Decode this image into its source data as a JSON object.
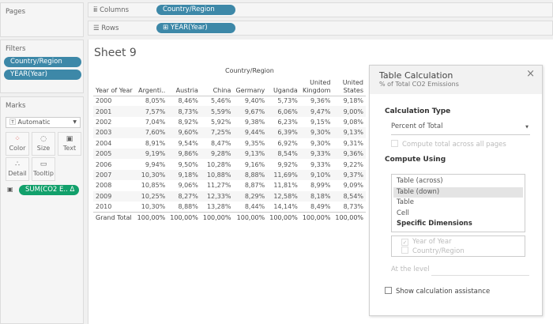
{
  "pages": {
    "title": "Pages"
  },
  "filters": {
    "title": "Filters",
    "items": [
      "Country/Region",
      "YEAR(Year)"
    ]
  },
  "marks": {
    "title": "Marks",
    "type": "Automatic",
    "cards": [
      "Color",
      "Size",
      "Text",
      "Detail",
      "Tooltip"
    ],
    "field": "SUM(CO2 E.. Δ"
  },
  "shelves": {
    "columns_label": "Columns",
    "columns_pill": "Country/Region",
    "rows_label": "Rows",
    "rows_pill": "⊞ YEAR(Year)"
  },
  "sheet": {
    "title": "Sheet 9",
    "column_group": "Country/Region",
    "headers": [
      "Year of Year",
      "Argenti..",
      "Austria",
      "China",
      "Germany",
      "Uganda",
      "United Kingdom",
      "United States"
    ],
    "rows": [
      [
        "2000",
        "8,05%",
        "8,46%",
        "5,46%",
        "9,40%",
        "5,73%",
        "9,36%",
        "9,18%"
      ],
      [
        "2001",
        "7,57%",
        "8,73%",
        "5,59%",
        "9,67%",
        "6,06%",
        "9,47%",
        "9,00%"
      ],
      [
        "2002",
        "7,04%",
        "8,92%",
        "5,92%",
        "9,38%",
        "6,23%",
        "9,15%",
        "9,08%"
      ],
      [
        "2003",
        "7,60%",
        "9,60%",
        "7,25%",
        "9,44%",
        "6,39%",
        "9,30%",
        "9,13%"
      ],
      [
        "2004",
        "8,91%",
        "9,54%",
        "8,47%",
        "9,35%",
        "6,92%",
        "9,30%",
        "9,31%"
      ],
      [
        "2005",
        "9,19%",
        "9,86%",
        "9,28%",
        "9,13%",
        "8,54%",
        "9,33%",
        "9,36%"
      ],
      [
        "2006",
        "9,94%",
        "9,50%",
        "10,28%",
        "9,16%",
        "9,92%",
        "9,33%",
        "9,22%"
      ],
      [
        "2007",
        "10,30%",
        "9,18%",
        "10,88%",
        "8,88%",
        "11,69%",
        "9,10%",
        "9,37%"
      ],
      [
        "2008",
        "10,85%",
        "9,06%",
        "11,27%",
        "8,87%",
        "11,81%",
        "8,99%",
        "9,09%"
      ],
      [
        "2009",
        "10,25%",
        "8,27%",
        "12,33%",
        "8,29%",
        "12,58%",
        "8,18%",
        "8,54%"
      ],
      [
        "2010",
        "10,30%",
        "8,88%",
        "13,28%",
        "8,44%",
        "14,14%",
        "8,49%",
        "8,73%"
      ]
    ],
    "total": [
      "Grand Total",
      "100,00%",
      "100,00%",
      "100,00%",
      "100,00%",
      "100,00%",
      "100,00%",
      "100,00%"
    ]
  },
  "dialog": {
    "title": "Table Calculation",
    "subtitle": "% of Total CO2 Emissions",
    "calc_type_label": "Calculation Type",
    "calc_type": "Percent of Total",
    "compute_all_pages": "Compute total across all pages",
    "compute_using_label": "Compute Using",
    "compute_options": [
      "Table (across)",
      "Table (down)",
      "Table",
      "Cell",
      "Specific Dimensions"
    ],
    "selected_option": "Table (down)",
    "dimensions": [
      {
        "label": "Year of Year",
        "checked": true
      },
      {
        "label": "Country/Region",
        "checked": false
      }
    ],
    "at_level": "At the level",
    "assistance": "Show calculation assistance"
  },
  "colors": {
    "pill_blue": "#3d88a8",
    "pill_green": "#12a06b"
  }
}
